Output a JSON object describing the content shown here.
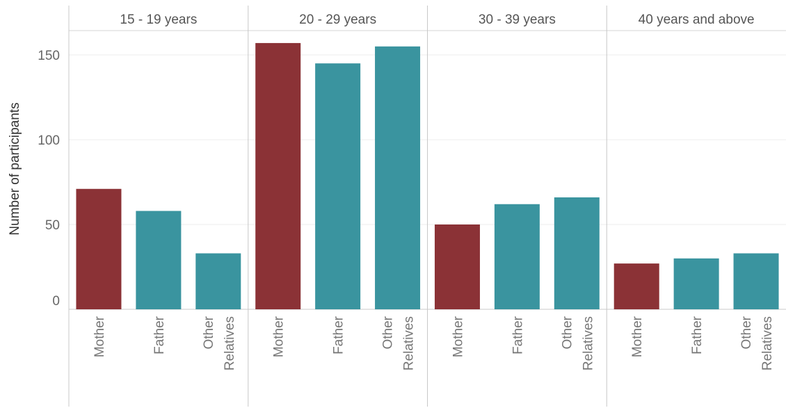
{
  "chart_data": {
    "type": "bar",
    "ylabel": "Number of participants",
    "ylim": [
      0,
      165
    ],
    "yticks": [
      0,
      50,
      100,
      150
    ],
    "grid": true,
    "colors": {
      "Mother": "#8b3236",
      "Father": "#3a949f",
      "Other Relatives": "#3a949f"
    },
    "categories": [
      "Mother",
      "Father",
      "Other Relatives"
    ],
    "category_label_lines": [
      [
        "Mother"
      ],
      [
        "Father"
      ],
      [
        "Other",
        "Relatives"
      ]
    ],
    "panels": [
      {
        "label": "15 - 19 years",
        "values": [
          71,
          58,
          33
        ]
      },
      {
        "label": "20 - 29 years",
        "values": [
          157,
          145,
          155
        ]
      },
      {
        "label": "30 - 39 years",
        "values": [
          50,
          62,
          66
        ]
      },
      {
        "label": "40 years and above",
        "values": [
          27,
          30,
          33
        ]
      }
    ]
  }
}
